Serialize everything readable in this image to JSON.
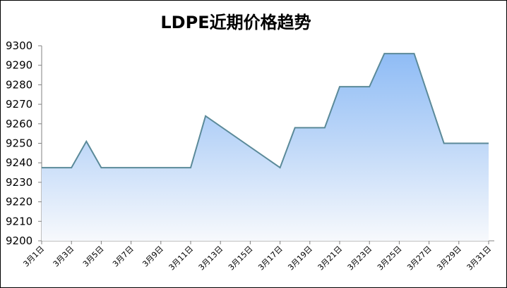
{
  "chart_data": {
    "type": "area",
    "title": "LDPE近期价格趋势",
    "xlabel": "",
    "ylabel": "",
    "ylim": [
      9200,
      9300
    ],
    "yticks": [
      9200,
      9210,
      9220,
      9230,
      9240,
      9250,
      9260,
      9270,
      9280,
      9290,
      9300
    ],
    "grid": false,
    "categories": [
      "3月1日",
      "3月3日",
      "3月5日",
      "3月7日",
      "3月9日",
      "3月11日",
      "3月13日",
      "3月15日",
      "3月17日",
      "3月19日",
      "3月21日",
      "3月23日",
      "3月25日",
      "3月27日",
      "3月29日",
      "3月31日"
    ],
    "x": [
      1,
      31
    ],
    "series": [
      {
        "x": [
          1,
          3,
          4,
          5,
          11,
          12,
          17,
          18,
          20,
          21,
          23,
          24,
          26,
          28,
          31
        ],
        "values": [
          9237.5,
          9237.5,
          9251,
          9237.5,
          9237.5,
          9264,
          9237.5,
          9258,
          9258,
          9279,
          9279,
          9296,
          9296,
          9250,
          9250
        ]
      }
    ],
    "colors": {
      "line": "#5B8A99",
      "fill_top": "#8FBCF5",
      "fill_bottom": "#F7F9FC",
      "axis": "#808080"
    }
  }
}
